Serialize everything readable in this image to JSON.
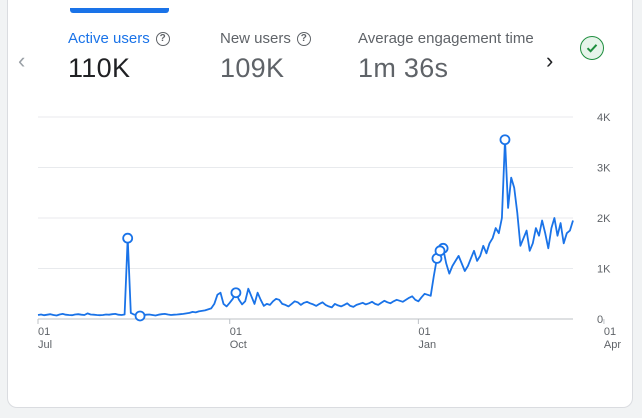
{
  "metrics": [
    {
      "label": "Active users",
      "value": "110K",
      "active": true
    },
    {
      "label": "New users",
      "value": "109K",
      "active": false
    },
    {
      "label": "Average engagement time p",
      "value": "1m 36s",
      "active": false
    }
  ],
  "icons": {
    "prev": "chevron-left-icon",
    "next": "chevron-right-icon",
    "status": "check-circle-icon",
    "help": "help-circle-icon"
  },
  "colors": {
    "accent": "#1a73e8",
    "success": "#1e8e3e"
  },
  "chart_data": {
    "type": "line",
    "series": [
      {
        "values": [
          80,
          90,
          75,
          85,
          95,
          80,
          70,
          90,
          100,
          85,
          80,
          75,
          90,
          95,
          85,
          80,
          110,
          90,
          85,
          80,
          75,
          80,
          90,
          85,
          95,
          100,
          85,
          80,
          90,
          1600,
          120,
          90,
          80,
          60,
          75,
          85,
          90,
          80,
          70,
          85,
          95,
          100,
          90,
          80,
          85,
          90,
          95,
          100,
          110,
          120,
          140,
          130,
          150,
          160,
          170,
          190,
          210,
          300,
          480,
          520,
          300,
          250,
          320,
          400,
          520,
          380,
          290,
          350,
          600,
          450,
          300,
          520,
          380,
          260,
          300,
          280,
          350,
          400,
          380,
          300,
          280,
          250,
          300,
          350,
          330,
          280,
          320,
          340,
          310,
          290,
          260,
          300,
          330,
          280,
          250,
          230,
          300,
          270,
          250,
          280,
          310,
          260,
          240,
          280,
          300,
          320,
          290,
          310,
          340,
          300,
          280,
          320,
          360,
          330,
          310,
          350,
          380,
          360,
          340,
          380,
          420,
          450,
          380,
          350,
          430,
          500,
          480,
          460,
          850,
          1200,
          1350,
          1400,
          1100,
          900,
          1050,
          1150,
          1250,
          1100,
          950,
          1050,
          1200,
          1350,
          1150,
          1250,
          1450,
          1300,
          1500,
          1600,
          1800,
          1700,
          2000,
          3550,
          2200,
          2800,
          2600,
          2100,
          1450,
          1600,
          1750,
          1350,
          1500,
          1800,
          1650,
          1950,
          1700,
          1400,
          1800,
          2000,
          1650,
          1900,
          1500,
          1700,
          1750,
          1950
        ]
      }
    ],
    "markers": [
      29,
      33,
      64,
      129,
      131,
      130,
      151
    ],
    "x_ticks": [
      {
        "index": 0,
        "day": "01",
        "month": "Jul"
      },
      {
        "index": 62,
        "day": "01",
        "month": "Oct"
      },
      {
        "index": 123,
        "day": "01",
        "month": "Jan"
      },
      {
        "index": 183,
        "day": "01",
        "month": "Apr"
      }
    ],
    "y_ticks": [
      {
        "value": 0,
        "label": "0"
      },
      {
        "value": 1000,
        "label": "1K"
      },
      {
        "value": 2000,
        "label": "2K"
      },
      {
        "value": 3000,
        "label": "3K"
      },
      {
        "value": 4000,
        "label": "4K"
      }
    ],
    "ylim": [
      0,
      4000
    ],
    "grid": true
  }
}
